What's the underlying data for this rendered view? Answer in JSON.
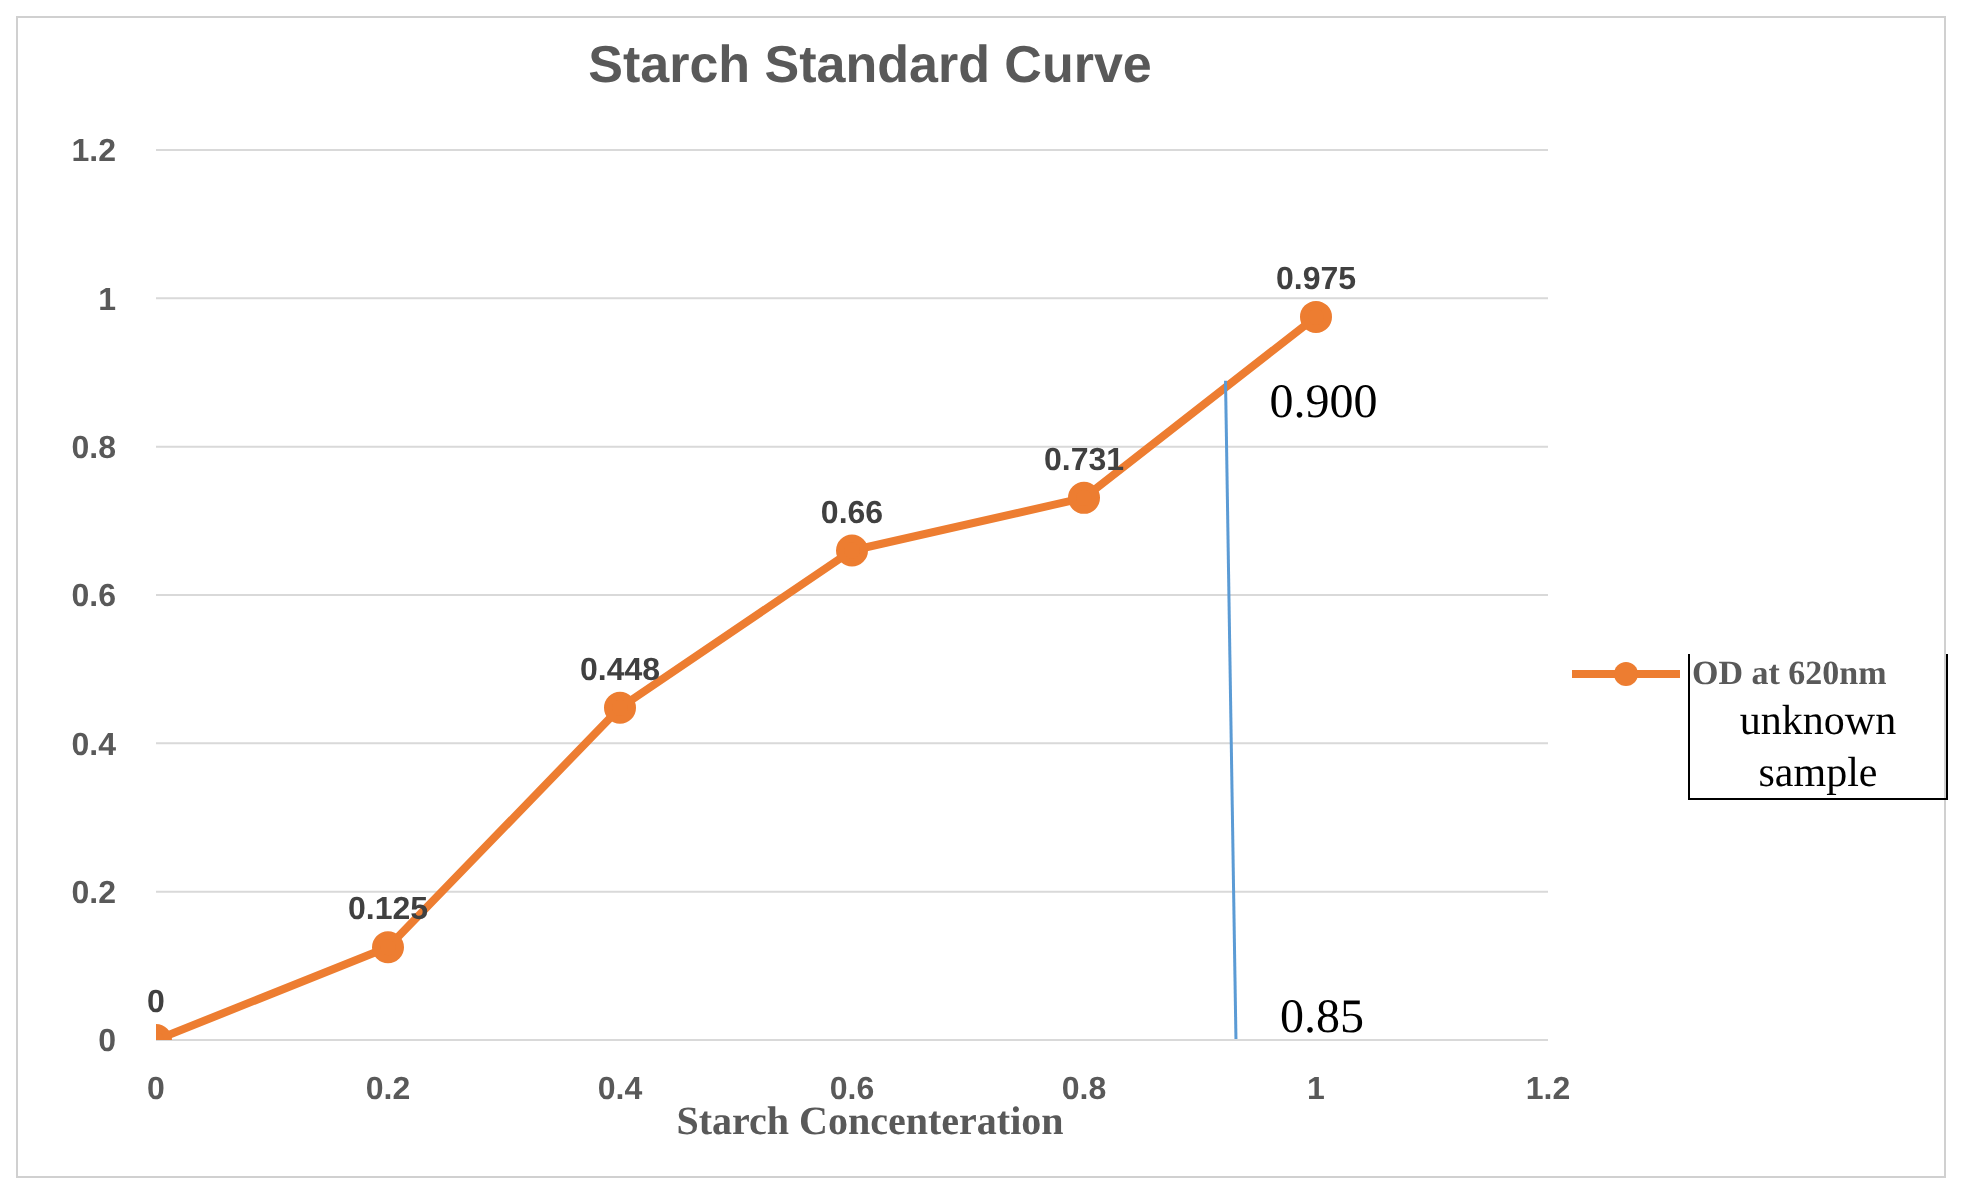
{
  "chart_data": {
    "type": "line",
    "title": "Starch Standard Curve",
    "xlabel": "Starch Concenteration",
    "xlim": [
      0,
      1.2
    ],
    "xticks": [
      0,
      0.2,
      0.4,
      0.6,
      0.8,
      1,
      1.2
    ],
    "ylim": [
      0,
      1.2
    ],
    "yticks": [
      0,
      0.2,
      0.4,
      0.6,
      0.8,
      1,
      1.2
    ],
    "grid": "y",
    "legend": "right",
    "marker": "circle",
    "data_labels": true,
    "series": [
      {
        "name": "OD at 620nm",
        "color": "#ed7d31",
        "x": [
          0,
          0.2,
          0.4,
          0.6,
          0.8,
          1
        ],
        "values": [
          0,
          0.125,
          0.448,
          0.66,
          0.731,
          0.975
        ]
      },
      {
        "color": "#5b9bd5",
        "marker": "none",
        "x": [
          0.922,
          0.931
        ],
        "values": [
          0.889,
          0
        ],
        "value_labels": [
          null,
          null
        ]
      }
    ],
    "annotations": [
      "unknown sample",
      {
        "text": "0.900",
        "x": 0.922,
        "y": 0.889
      },
      {
        "text": "0.85",
        "x": 0.931,
        "y": 0
      }
    ]
  }
}
